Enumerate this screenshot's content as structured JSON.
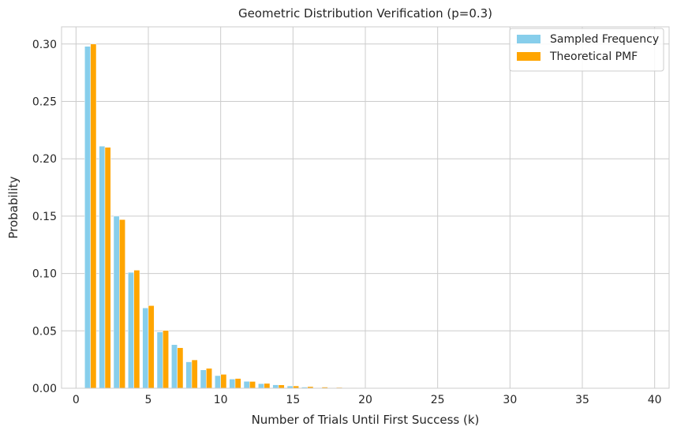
{
  "chart_data": {
    "type": "bar",
    "title": "Geometric Distribution Verification (p=0.3)",
    "xlabel": "Number of Trials Until First Success (k)",
    "ylabel": "Probability",
    "xlim": [
      -1,
      41
    ],
    "ylim": [
      0,
      0.315
    ],
    "xticks": [
      0,
      5,
      10,
      15,
      20,
      25,
      30,
      35,
      40
    ],
    "yticks": [
      0.0,
      0.05,
      0.1,
      0.15,
      0.2,
      0.25,
      0.3
    ],
    "grid": true,
    "legend_position": "top-right",
    "x": [
      1,
      2,
      3,
      4,
      5,
      6,
      7,
      8,
      9,
      10,
      11,
      12,
      13,
      14,
      15,
      16,
      17,
      18,
      19,
      20
    ],
    "series": [
      {
        "name": "Sampled Frequency",
        "color": "#87ceeb",
        "values": [
          0.298,
          0.211,
          0.15,
          0.101,
          0.07,
          0.049,
          0.038,
          0.023,
          0.016,
          0.011,
          0.008,
          0.006,
          0.004,
          0.003,
          0.002,
          0.001,
          0.0005,
          0.0003,
          0.0002,
          0.0001
        ]
      },
      {
        "name": "Theoretical PMF",
        "color": "#ffa500",
        "values": [
          0.3,
          0.21,
          0.147,
          0.1029,
          0.072,
          0.0504,
          0.0353,
          0.0247,
          0.0173,
          0.0121,
          0.0085,
          0.0059,
          0.0042,
          0.0029,
          0.002,
          0.0014,
          0.001,
          0.0007,
          0.0005,
          0.0003
        ]
      }
    ]
  }
}
